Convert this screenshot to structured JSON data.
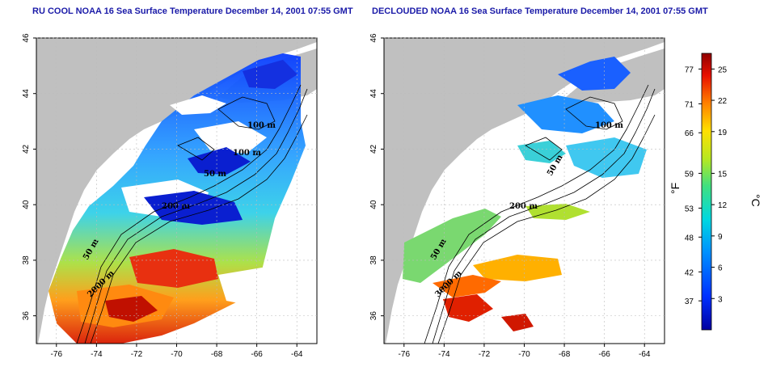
{
  "titles": {
    "left": "RU COOL NOAA 16 Sea Surface Temperature December 14, 2001 07:55 GMT",
    "right": "DECLOUDED NOAA 16 Sea Surface Temperature December 14, 2001 07:55 GMT"
  },
  "axes": {
    "lon_ticks": [
      "-76",
      "-74",
      "-72",
      "-70",
      "-68",
      "-66",
      "-64"
    ],
    "lat_ticks": [
      "46",
      "44",
      "42",
      "40",
      "38",
      "36"
    ]
  },
  "contour_labels": {
    "left": [
      "100 m",
      "100 m",
      "50 m",
      "200 m",
      "50 m",
      "2000 m"
    ],
    "right": [
      "100 m",
      "50 m",
      "200 m",
      "50 m",
      "3000 m"
    ]
  },
  "colorbar": {
    "fahrenheit_ticks": [
      "77",
      "71",
      "66",
      "59",
      "53",
      "48",
      "42",
      "37"
    ],
    "celsius_ticks": [
      "25",
      "22",
      "19",
      "15",
      "12",
      "9",
      "6",
      "3"
    ],
    "fahrenheit_unit": "°F",
    "celsius_unit": "°C"
  },
  "colors": {
    "land": "#c0c0c0",
    "water_cloud": "#ffffff",
    "title": "#1a1aa8"
  }
}
